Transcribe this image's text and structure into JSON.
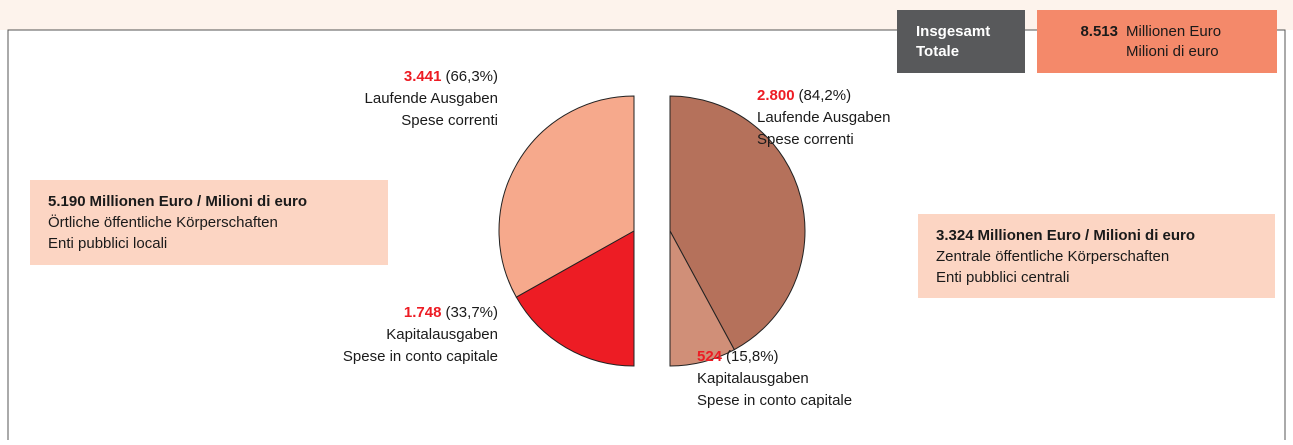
{
  "header": {
    "title": [
      "Insgesamt",
      "Totale"
    ],
    "value": 8513,
    "value_label": "8.513",
    "unit": [
      "Millionen Euro",
      "Milioni di euro"
    ]
  },
  "chart_data": [
    {
      "type": "pie",
      "total": 5190,
      "total_label": "5.190",
      "unit": "Millionen Euro / Milioni di euro",
      "group": [
        "Örtliche öffentliche Körperschaften",
        "Enti pubblici locali"
      ],
      "categories": [
        "Laufende Ausgaben",
        "Kapitalausgaben"
      ],
      "categories_it": [
        "Spese correnti",
        "Spese in conto capitale"
      ],
      "values": [
        3441,
        1748
      ],
      "value_labels": [
        "3.441",
        "1.748"
      ],
      "percents": [
        66.3,
        33.7
      ],
      "percent_labels": [
        "(66,3%)",
        "(33,7%)"
      ],
      "colors": [
        "#f6a98c",
        "#ed1c24"
      ]
    },
    {
      "type": "pie",
      "total": 3324,
      "total_label": "3.324",
      "unit": "Millionen Euro / Milioni di euro",
      "group": [
        "Zentrale öffentliche Körperschaften",
        "Enti pubblici centrali"
      ],
      "categories": [
        "Laufende Ausgaben",
        "Kapitalausgaben"
      ],
      "categories_it": [
        "Spese correnti",
        "Spese in conto capitale"
      ],
      "values": [
        2800,
        524
      ],
      "value_labels": [
        "2.800",
        "524"
      ],
      "percents": [
        84.2,
        15.8
      ],
      "percent_labels": [
        "(84,2%)",
        "(15,8%)"
      ],
      "colors": [
        "#b5715b",
        "#d08f78"
      ]
    }
  ]
}
